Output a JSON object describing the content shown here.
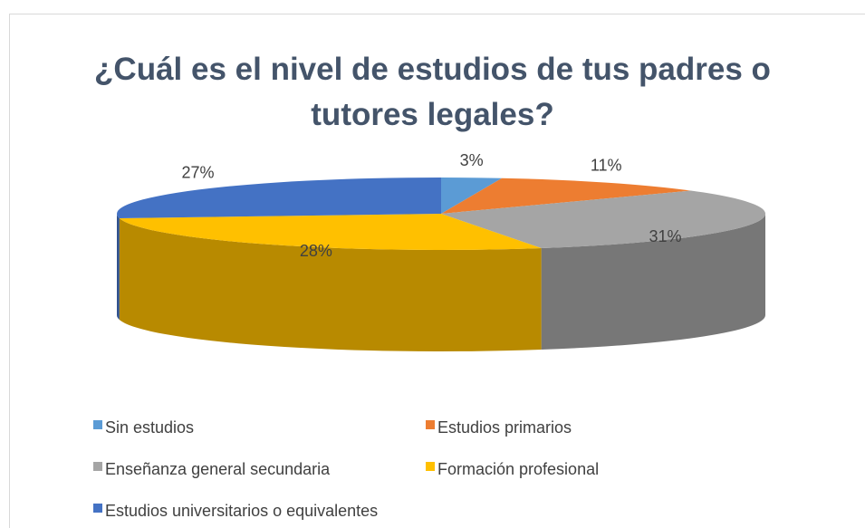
{
  "chart_data": {
    "type": "pie",
    "title": "¿Cuál es el nivel de estudios de tus padres o tutores legales?",
    "categories": [
      "Sin estudios",
      "Estudios primarios",
      "Enseñanza general secundaria",
      "Formación profesional",
      "Estudios universitarios o equivalentes"
    ],
    "values": [
      3,
      11,
      31,
      28,
      27
    ],
    "value_labels": [
      "3%",
      "11%",
      "31%",
      "28%",
      "27%"
    ],
    "colors": [
      "#5b9bd5",
      "#ed7d31",
      "#a5a5a5",
      "#ffc000",
      "#4472c4"
    ]
  }
}
